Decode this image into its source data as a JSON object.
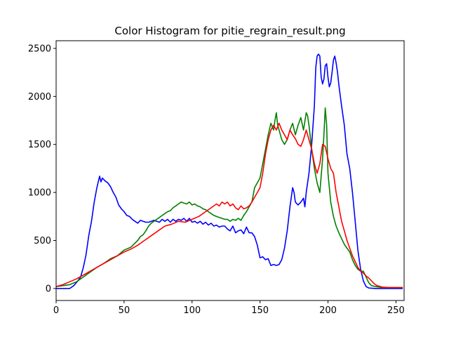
{
  "chart_data": {
    "type": "line",
    "title": "Color Histogram for pitie_regrain_result.png",
    "xlabel": "",
    "ylabel": "",
    "xlim": [
      0,
      256
    ],
    "ylim": [
      -125,
      2580
    ],
    "xticks": [
      0,
      50,
      100,
      150,
      200,
      250
    ],
    "yticks": [
      0,
      500,
      1000,
      1500,
      2000,
      2500
    ],
    "grid": false,
    "legend": "none",
    "series": [
      {
        "color": "#0000ff",
        "points": [
          [
            0,
            0
          ],
          [
            5,
            0
          ],
          [
            10,
            0
          ],
          [
            13,
            30
          ],
          [
            16,
            80
          ],
          [
            18,
            120
          ],
          [
            20,
            220
          ],
          [
            22,
            350
          ],
          [
            24,
            550
          ],
          [
            26,
            700
          ],
          [
            28,
            900
          ],
          [
            30,
            1050
          ],
          [
            32,
            1170
          ],
          [
            33,
            1110
          ],
          [
            34,
            1150
          ],
          [
            36,
            1120
          ],
          [
            38,
            1100
          ],
          [
            40,
            1060
          ],
          [
            42,
            1000
          ],
          [
            44,
            950
          ],
          [
            46,
            870
          ],
          [
            48,
            830
          ],
          [
            50,
            800
          ],
          [
            52,
            760
          ],
          [
            54,
            750
          ],
          [
            56,
            720
          ],
          [
            58,
            700
          ],
          [
            60,
            680
          ],
          [
            62,
            710
          ],
          [
            64,
            700
          ],
          [
            66,
            690
          ],
          [
            68,
            690
          ],
          [
            70,
            700
          ],
          [
            72,
            710
          ],
          [
            74,
            700
          ],
          [
            76,
            690
          ],
          [
            78,
            720
          ],
          [
            80,
            700
          ],
          [
            82,
            720
          ],
          [
            84,
            690
          ],
          [
            86,
            720
          ],
          [
            88,
            700
          ],
          [
            90,
            720
          ],
          [
            92,
            710
          ],
          [
            94,
            730
          ],
          [
            96,
            700
          ],
          [
            98,
            730
          ],
          [
            100,
            690
          ],
          [
            102,
            700
          ],
          [
            104,
            680
          ],
          [
            106,
            700
          ],
          [
            108,
            670
          ],
          [
            110,
            690
          ],
          [
            112,
            660
          ],
          [
            114,
            680
          ],
          [
            116,
            650
          ],
          [
            118,
            660
          ],
          [
            120,
            640
          ],
          [
            122,
            650
          ],
          [
            124,
            650
          ],
          [
            126,
            620
          ],
          [
            128,
            600
          ],
          [
            130,
            650
          ],
          [
            132,
            580
          ],
          [
            134,
            600
          ],
          [
            136,
            610
          ],
          [
            138,
            570
          ],
          [
            140,
            640
          ],
          [
            142,
            580
          ],
          [
            144,
            580
          ],
          [
            146,
            540
          ],
          [
            148,
            450
          ],
          [
            150,
            320
          ],
          [
            152,
            330
          ],
          [
            154,
            300
          ],
          [
            156,
            310
          ],
          [
            158,
            240
          ],
          [
            160,
            250
          ],
          [
            162,
            240
          ],
          [
            164,
            250
          ],
          [
            166,
            300
          ],
          [
            168,
            420
          ],
          [
            170,
            600
          ],
          [
            172,
            850
          ],
          [
            174,
            1050
          ],
          [
            175,
            1000
          ],
          [
            176,
            900
          ],
          [
            178,
            870
          ],
          [
            180,
            900
          ],
          [
            182,
            940
          ],
          [
            183,
            850
          ],
          [
            184,
            1000
          ],
          [
            186,
            1200
          ],
          [
            188,
            1500
          ],
          [
            190,
            1900
          ],
          [
            191,
            2300
          ],
          [
            192,
            2420
          ],
          [
            193,
            2440
          ],
          [
            194,
            2420
          ],
          [
            195,
            2200
          ],
          [
            196,
            2130
          ],
          [
            197,
            2180
          ],
          [
            198,
            2320
          ],
          [
            199,
            2340
          ],
          [
            200,
            2200
          ],
          [
            201,
            2100
          ],
          [
            202,
            2140
          ],
          [
            203,
            2250
          ],
          [
            204,
            2380
          ],
          [
            205,
            2420
          ],
          [
            206,
            2350
          ],
          [
            207,
            2250
          ],
          [
            208,
            2120
          ],
          [
            210,
            1900
          ],
          [
            212,
            1700
          ],
          [
            214,
            1400
          ],
          [
            216,
            1250
          ],
          [
            218,
            1000
          ],
          [
            220,
            700
          ],
          [
            222,
            400
          ],
          [
            224,
            200
          ],
          [
            226,
            80
          ],
          [
            228,
            20
          ],
          [
            230,
            5
          ],
          [
            235,
            0
          ],
          [
            240,
            0
          ],
          [
            245,
            0
          ],
          [
            250,
            0
          ],
          [
            255,
            0
          ]
        ]
      },
      {
        "color": "#008000",
        "points": [
          [
            0,
            20
          ],
          [
            5,
            30
          ],
          [
            10,
            40
          ],
          [
            15,
            70
          ],
          [
            20,
            120
          ],
          [
            25,
            170
          ],
          [
            30,
            220
          ],
          [
            35,
            260
          ],
          [
            40,
            310
          ],
          [
            45,
            340
          ],
          [
            50,
            400
          ],
          [
            55,
            430
          ],
          [
            60,
            500
          ],
          [
            62,
            540
          ],
          [
            64,
            560
          ],
          [
            66,
            600
          ],
          [
            68,
            650
          ],
          [
            70,
            680
          ],
          [
            72,
            700
          ],
          [
            74,
            720
          ],
          [
            76,
            740
          ],
          [
            78,
            760
          ],
          [
            80,
            780
          ],
          [
            82,
            800
          ],
          [
            84,
            810
          ],
          [
            86,
            840
          ],
          [
            88,
            860
          ],
          [
            90,
            880
          ],
          [
            92,
            900
          ],
          [
            94,
            890
          ],
          [
            96,
            880
          ],
          [
            98,
            900
          ],
          [
            100,
            870
          ],
          [
            102,
            880
          ],
          [
            104,
            860
          ],
          [
            106,
            850
          ],
          [
            108,
            830
          ],
          [
            110,
            820
          ],
          [
            112,
            800
          ],
          [
            114,
            780
          ],
          [
            116,
            760
          ],
          [
            118,
            750
          ],
          [
            120,
            740
          ],
          [
            122,
            730
          ],
          [
            124,
            720
          ],
          [
            126,
            720
          ],
          [
            128,
            700
          ],
          [
            130,
            720
          ],
          [
            132,
            710
          ],
          [
            134,
            730
          ],
          [
            136,
            710
          ],
          [
            138,
            760
          ],
          [
            140,
            800
          ],
          [
            142,
            850
          ],
          [
            144,
            900
          ],
          [
            146,
            1050
          ],
          [
            148,
            1100
          ],
          [
            150,
            1150
          ],
          [
            152,
            1300
          ],
          [
            154,
            1450
          ],
          [
            156,
            1600
          ],
          [
            158,
            1720
          ],
          [
            160,
            1650
          ],
          [
            161,
            1750
          ],
          [
            162,
            1830
          ],
          [
            163,
            1700
          ],
          [
            164,
            1650
          ],
          [
            166,
            1550
          ],
          [
            168,
            1500
          ],
          [
            170,
            1550
          ],
          [
            172,
            1650
          ],
          [
            174,
            1720
          ],
          [
            176,
            1600
          ],
          [
            178,
            1700
          ],
          [
            180,
            1780
          ],
          [
            182,
            1650
          ],
          [
            184,
            1830
          ],
          [
            185,
            1800
          ],
          [
            186,
            1700
          ],
          [
            188,
            1450
          ],
          [
            190,
            1250
          ],
          [
            192,
            1100
          ],
          [
            194,
            1000
          ],
          [
            196,
            1350
          ],
          [
            197,
            1600
          ],
          [
            198,
            1880
          ],
          [
            199,
            1700
          ],
          [
            200,
            1200
          ],
          [
            202,
            900
          ],
          [
            204,
            750
          ],
          [
            206,
            650
          ],
          [
            208,
            580
          ],
          [
            210,
            520
          ],
          [
            212,
            460
          ],
          [
            214,
            420
          ],
          [
            216,
            380
          ],
          [
            218,
            300
          ],
          [
            220,
            240
          ],
          [
            222,
            200
          ],
          [
            224,
            180
          ],
          [
            226,
            180
          ],
          [
            228,
            120
          ],
          [
            230,
            60
          ],
          [
            232,
            30
          ],
          [
            235,
            20
          ],
          [
            240,
            10
          ],
          [
            245,
            10
          ],
          [
            250,
            10
          ],
          [
            255,
            10
          ]
        ]
      },
      {
        "color": "#ff0000",
        "points": [
          [
            0,
            20
          ],
          [
            5,
            40
          ],
          [
            10,
            70
          ],
          [
            15,
            100
          ],
          [
            20,
            140
          ],
          [
            25,
            180
          ],
          [
            30,
            220
          ],
          [
            35,
            260
          ],
          [
            40,
            300
          ],
          [
            45,
            340
          ],
          [
            50,
            380
          ],
          [
            55,
            410
          ],
          [
            60,
            450
          ],
          [
            65,
            500
          ],
          [
            70,
            550
          ],
          [
            75,
            600
          ],
          [
            80,
            650
          ],
          [
            85,
            670
          ],
          [
            90,
            700
          ],
          [
            95,
            690
          ],
          [
            100,
            720
          ],
          [
            105,
            750
          ],
          [
            110,
            800
          ],
          [
            115,
            850
          ],
          [
            118,
            880
          ],
          [
            120,
            860
          ],
          [
            122,
            900
          ],
          [
            124,
            880
          ],
          [
            126,
            900
          ],
          [
            128,
            860
          ],
          [
            130,
            880
          ],
          [
            132,
            840
          ],
          [
            134,
            820
          ],
          [
            136,
            860
          ],
          [
            138,
            830
          ],
          [
            140,
            840
          ],
          [
            142,
            860
          ],
          [
            144,
            900
          ],
          [
            146,
            950
          ],
          [
            148,
            1000
          ],
          [
            150,
            1050
          ],
          [
            152,
            1200
          ],
          [
            154,
            1400
          ],
          [
            156,
            1550
          ],
          [
            158,
            1650
          ],
          [
            160,
            1700
          ],
          [
            162,
            1650
          ],
          [
            164,
            1720
          ],
          [
            166,
            1650
          ],
          [
            168,
            1600
          ],
          [
            170,
            1550
          ],
          [
            172,
            1650
          ],
          [
            174,
            1600
          ],
          [
            176,
            1560
          ],
          [
            178,
            1500
          ],
          [
            180,
            1480
          ],
          [
            182,
            1550
          ],
          [
            184,
            1650
          ],
          [
            186,
            1550
          ],
          [
            188,
            1450
          ],
          [
            190,
            1300
          ],
          [
            192,
            1200
          ],
          [
            194,
            1300
          ],
          [
            196,
            1500
          ],
          [
            198,
            1480
          ],
          [
            200,
            1350
          ],
          [
            202,
            1250
          ],
          [
            204,
            1200
          ],
          [
            206,
            1000
          ],
          [
            208,
            850
          ],
          [
            210,
            700
          ],
          [
            212,
            600
          ],
          [
            214,
            500
          ],
          [
            216,
            420
          ],
          [
            218,
            340
          ],
          [
            220,
            280
          ],
          [
            222,
            220
          ],
          [
            224,
            180
          ],
          [
            226,
            160
          ],
          [
            228,
            130
          ],
          [
            230,
            110
          ],
          [
            232,
            80
          ],
          [
            234,
            50
          ],
          [
            236,
            30
          ],
          [
            240,
            15
          ],
          [
            245,
            10
          ],
          [
            250,
            10
          ],
          [
            255,
            10
          ]
        ]
      }
    ]
  }
}
